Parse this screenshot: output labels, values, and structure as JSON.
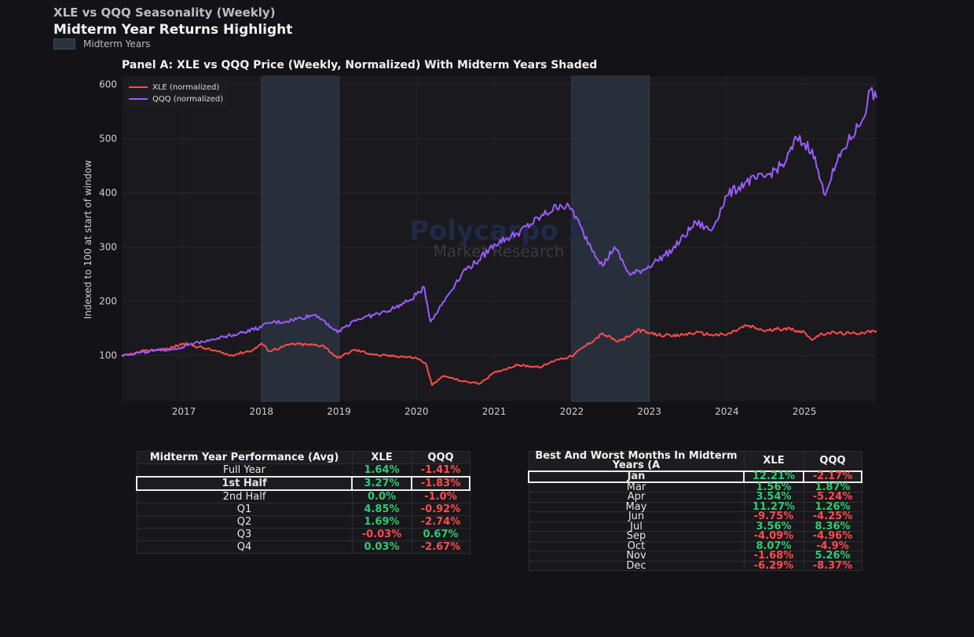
{
  "header": {
    "subtitle": "XLE vs QQQ Seasonality (Weekly)",
    "title": "Midterm Year Returns Highlight",
    "legend_label": "Midterm Years"
  },
  "watermark": {
    "line1": "Polycarpo X",
    "line2": "Market Research"
  },
  "colors": {
    "xle": "#ff4b4b",
    "qqq": "#9b5cff",
    "shade": "#2a3340",
    "pos": "#2ecc71",
    "neg": "#ff4d4d",
    "bg": "#131216",
    "plot_bg": "#1a191d"
  },
  "chart_data": {
    "type": "line",
    "title": "Panel A: XLE vs QQQ Price (Weekly, Normalized) With Midterm Years Shaded",
    "ylabel": "Indexed to 100 at start of window",
    "xlabel": "",
    "xlim": [
      2016.2,
      2025.93
    ],
    "ylim": [
      15,
      615
    ],
    "xticks": [
      2017,
      2018,
      2019,
      2020,
      2021,
      2022,
      2023,
      2024,
      2025
    ],
    "yticks": [
      100,
      200,
      300,
      400,
      500,
      600
    ],
    "shaded_ranges": [
      [
        2018,
        2019
      ],
      [
        2022,
        2023
      ]
    ],
    "legend_position": "top-left",
    "series": [
      {
        "name": "XLE (normalized)",
        "color": "#ff4b4b",
        "points": [
          [
            2016.2,
            98
          ],
          [
            2016.5,
            108
          ],
          [
            2016.8,
            112
          ],
          [
            2017.0,
            122
          ],
          [
            2017.3,
            112
          ],
          [
            2017.6,
            100
          ],
          [
            2017.9,
            110
          ],
          [
            2018.0,
            122
          ],
          [
            2018.1,
            108
          ],
          [
            2018.4,
            121
          ],
          [
            2018.8,
            118
          ],
          [
            2018.98,
            95
          ],
          [
            2019.2,
            110
          ],
          [
            2019.5,
            100
          ],
          [
            2019.8,
            98
          ],
          [
            2020.0,
            95
          ],
          [
            2020.12,
            85
          ],
          [
            2020.2,
            45
          ],
          [
            2020.35,
            62
          ],
          [
            2020.6,
            52
          ],
          [
            2020.82,
            48
          ],
          [
            2021.0,
            68
          ],
          [
            2021.3,
            82
          ],
          [
            2021.6,
            78
          ],
          [
            2021.8,
            92
          ],
          [
            2022.0,
            98
          ],
          [
            2022.15,
            115
          ],
          [
            2022.4,
            140
          ],
          [
            2022.6,
            125
          ],
          [
            2022.75,
            135
          ],
          [
            2022.85,
            148
          ],
          [
            2023.0,
            140
          ],
          [
            2023.3,
            135
          ],
          [
            2023.6,
            142
          ],
          [
            2023.8,
            138
          ],
          [
            2024.0,
            138
          ],
          [
            2024.25,
            155
          ],
          [
            2024.5,
            145
          ],
          [
            2024.75,
            150
          ],
          [
            2025.0,
            143
          ],
          [
            2025.08,
            130
          ],
          [
            2025.3,
            142
          ],
          [
            2025.6,
            140
          ],
          [
            2025.93,
            145
          ]
        ]
      },
      {
        "name": "QQQ (normalized)",
        "color": "#9b5cff",
        "points": [
          [
            2016.2,
            100
          ],
          [
            2016.6,
            108
          ],
          [
            2016.9,
            112
          ],
          [
            2017.3,
            128
          ],
          [
            2017.7,
            140
          ],
          [
            2018.0,
            152
          ],
          [
            2018.1,
            160
          ],
          [
            2018.3,
            162
          ],
          [
            2018.7,
            175
          ],
          [
            2018.8,
            165
          ],
          [
            2018.98,
            142
          ],
          [
            2019.2,
            165
          ],
          [
            2019.6,
            180
          ],
          [
            2019.9,
            200
          ],
          [
            2020.1,
            225
          ],
          [
            2020.18,
            162
          ],
          [
            2020.4,
            210
          ],
          [
            2020.6,
            255
          ],
          [
            2020.8,
            275
          ],
          [
            2021.0,
            305
          ],
          [
            2021.3,
            325
          ],
          [
            2021.6,
            355
          ],
          [
            2021.85,
            378
          ],
          [
            2022.0,
            370
          ],
          [
            2022.15,
            325
          ],
          [
            2022.4,
            265
          ],
          [
            2022.55,
            300
          ],
          [
            2022.75,
            248
          ],
          [
            2022.95,
            260
          ],
          [
            2023.1,
            275
          ],
          [
            2023.3,
            295
          ],
          [
            2023.6,
            345
          ],
          [
            2023.8,
            330
          ],
          [
            2024.0,
            395
          ],
          [
            2024.25,
            420
          ],
          [
            2024.5,
            430
          ],
          [
            2024.75,
            455
          ],
          [
            2024.9,
            500
          ],
          [
            2025.1,
            480
          ],
          [
            2025.25,
            398
          ],
          [
            2025.5,
            480
          ],
          [
            2025.75,
            535
          ],
          [
            2025.85,
            590
          ],
          [
            2025.93,
            575
          ]
        ]
      }
    ]
  },
  "table_performance": {
    "columns": [
      "Midterm Year Performance (Avg)",
      "XLE",
      "QQQ"
    ],
    "rows": [
      [
        "Full Year",
        "1.64%",
        "-1.41%"
      ],
      [
        "1st Half",
        "3.27%",
        "-1.83%"
      ],
      [
        "2nd Half",
        "0.0%",
        "-1.0%"
      ],
      [
        "Q1",
        "4.85%",
        "-0.92%"
      ],
      [
        "Q2",
        "1.69%",
        "-2.74%"
      ],
      [
        "Q3",
        "-0.03%",
        "0.67%"
      ],
      [
        "Q4",
        "0.03%",
        "-2.67%"
      ]
    ]
  },
  "table_months": {
    "columns": [
      "Best And Worst Months In Midterm Years (A",
      "XLE",
      "QQQ"
    ],
    "rows": [
      [
        "Jan",
        "12.21%",
        "-2.17%"
      ],
      [
        "Mar",
        "1.56%",
        "1.87%"
      ],
      [
        "Apr",
        "3.54%",
        "-5.24%"
      ],
      [
        "May",
        "11.27%",
        "1.26%"
      ],
      [
        "Jun",
        "-9.75%",
        "-4.25%"
      ],
      [
        "Jul",
        "3.56%",
        "8.36%"
      ],
      [
        "Sep",
        "-4.09%",
        "-4.96%"
      ],
      [
        "Oct",
        "8.07%",
        "-4.9%"
      ],
      [
        "Nov",
        "-1.68%",
        "5.26%"
      ],
      [
        "Dec",
        "-6.29%",
        "-8.37%"
      ]
    ]
  }
}
